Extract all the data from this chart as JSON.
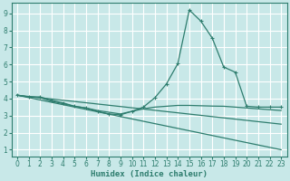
{
  "background_color": "#c8e8e8",
  "grid_color": "#ffffff",
  "line_color": "#2e7d6e",
  "xlabel": "Humidex (Indice chaleur)",
  "xlim": [
    -0.5,
    23.5
  ],
  "ylim": [
    0.6,
    9.6
  ],
  "yticks": [
    1,
    2,
    3,
    4,
    5,
    6,
    7,
    8,
    9
  ],
  "xticks": [
    0,
    1,
    2,
    3,
    4,
    5,
    6,
    7,
    8,
    9,
    10,
    11,
    12,
    13,
    14,
    15,
    16,
    17,
    18,
    19,
    20,
    21,
    22,
    23
  ],
  "series": [
    {
      "x": [
        0,
        1,
        2,
        3,
        4,
        5,
        6,
        7,
        8,
        9,
        10,
        11,
        12,
        13,
        14,
        15,
        16,
        17,
        18,
        19,
        20,
        21,
        22,
        23
      ],
      "y": [
        4.2,
        4.1,
        4.1,
        3.9,
        3.75,
        3.55,
        3.45,
        3.25,
        3.1,
        3.05,
        3.25,
        3.5,
        4.05,
        4.85,
        6.05,
        9.2,
        8.55,
        7.55,
        5.85,
        5.55,
        3.55,
        3.5,
        3.5,
        3.5
      ],
      "marker": true
    },
    {
      "x": [
        0,
        1,
        2,
        3,
        4,
        5,
        6,
        7,
        8,
        9,
        10,
        11,
        12,
        13,
        14,
        15,
        16,
        17,
        18,
        19,
        20,
        21,
        22,
        23
      ],
      "y": [
        4.2,
        4.1,
        4.05,
        3.85,
        3.7,
        3.55,
        3.45,
        3.3,
        3.2,
        3.1,
        3.25,
        3.4,
        3.5,
        3.55,
        3.6,
        3.6,
        3.58,
        3.56,
        3.55,
        3.5,
        3.45,
        3.4,
        3.35,
        3.3
      ],
      "marker": false
    },
    {
      "x": [
        0,
        23
      ],
      "y": [
        4.2,
        2.5
      ],
      "marker": false
    },
    {
      "x": [
        0,
        23
      ],
      "y": [
        4.2,
        1.0
      ],
      "marker": false
    }
  ]
}
